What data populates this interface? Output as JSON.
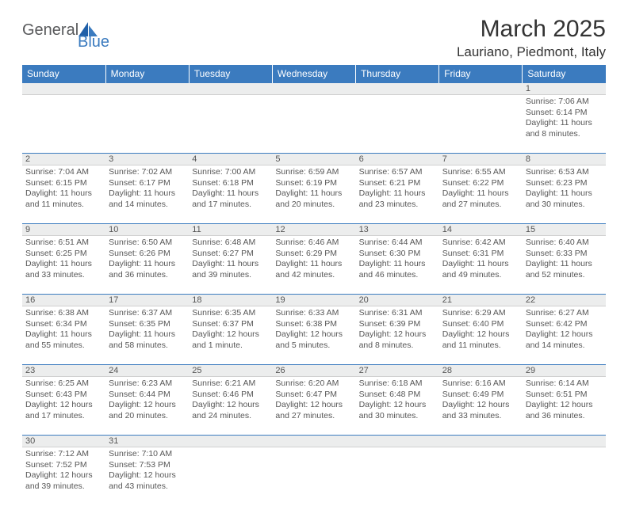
{
  "logo": {
    "text1": "General",
    "text2": "Blue"
  },
  "header": {
    "month_title": "March 2025",
    "location": "Lauriano, Piedmont, Italy"
  },
  "colors": {
    "header_bg": "#3b7bbf",
    "header_text": "#ffffff",
    "daynum_bg": "#eceded",
    "divider": "#3b7bbf",
    "body_text": "#575757"
  },
  "day_names": [
    "Sunday",
    "Monday",
    "Tuesday",
    "Wednesday",
    "Thursday",
    "Friday",
    "Saturday"
  ],
  "weeks": [
    [
      null,
      null,
      null,
      null,
      null,
      null,
      {
        "n": "1",
        "sr": "Sunrise: 7:06 AM",
        "ss": "Sunset: 6:14 PM",
        "dl": "Daylight: 11 hours and 8 minutes."
      }
    ],
    [
      {
        "n": "2",
        "sr": "Sunrise: 7:04 AM",
        "ss": "Sunset: 6:15 PM",
        "dl": "Daylight: 11 hours and 11 minutes."
      },
      {
        "n": "3",
        "sr": "Sunrise: 7:02 AM",
        "ss": "Sunset: 6:17 PM",
        "dl": "Daylight: 11 hours and 14 minutes."
      },
      {
        "n": "4",
        "sr": "Sunrise: 7:00 AM",
        "ss": "Sunset: 6:18 PM",
        "dl": "Daylight: 11 hours and 17 minutes."
      },
      {
        "n": "5",
        "sr": "Sunrise: 6:59 AM",
        "ss": "Sunset: 6:19 PM",
        "dl": "Daylight: 11 hours and 20 minutes."
      },
      {
        "n": "6",
        "sr": "Sunrise: 6:57 AM",
        "ss": "Sunset: 6:21 PM",
        "dl": "Daylight: 11 hours and 23 minutes."
      },
      {
        "n": "7",
        "sr": "Sunrise: 6:55 AM",
        "ss": "Sunset: 6:22 PM",
        "dl": "Daylight: 11 hours and 27 minutes."
      },
      {
        "n": "8",
        "sr": "Sunrise: 6:53 AM",
        "ss": "Sunset: 6:23 PM",
        "dl": "Daylight: 11 hours and 30 minutes."
      }
    ],
    [
      {
        "n": "9",
        "sr": "Sunrise: 6:51 AM",
        "ss": "Sunset: 6:25 PM",
        "dl": "Daylight: 11 hours and 33 minutes."
      },
      {
        "n": "10",
        "sr": "Sunrise: 6:50 AM",
        "ss": "Sunset: 6:26 PM",
        "dl": "Daylight: 11 hours and 36 minutes."
      },
      {
        "n": "11",
        "sr": "Sunrise: 6:48 AM",
        "ss": "Sunset: 6:27 PM",
        "dl": "Daylight: 11 hours and 39 minutes."
      },
      {
        "n": "12",
        "sr": "Sunrise: 6:46 AM",
        "ss": "Sunset: 6:29 PM",
        "dl": "Daylight: 11 hours and 42 minutes."
      },
      {
        "n": "13",
        "sr": "Sunrise: 6:44 AM",
        "ss": "Sunset: 6:30 PM",
        "dl": "Daylight: 11 hours and 46 minutes."
      },
      {
        "n": "14",
        "sr": "Sunrise: 6:42 AM",
        "ss": "Sunset: 6:31 PM",
        "dl": "Daylight: 11 hours and 49 minutes."
      },
      {
        "n": "15",
        "sr": "Sunrise: 6:40 AM",
        "ss": "Sunset: 6:33 PM",
        "dl": "Daylight: 11 hours and 52 minutes."
      }
    ],
    [
      {
        "n": "16",
        "sr": "Sunrise: 6:38 AM",
        "ss": "Sunset: 6:34 PM",
        "dl": "Daylight: 11 hours and 55 minutes."
      },
      {
        "n": "17",
        "sr": "Sunrise: 6:37 AM",
        "ss": "Sunset: 6:35 PM",
        "dl": "Daylight: 11 hours and 58 minutes."
      },
      {
        "n": "18",
        "sr": "Sunrise: 6:35 AM",
        "ss": "Sunset: 6:37 PM",
        "dl": "Daylight: 12 hours and 1 minute."
      },
      {
        "n": "19",
        "sr": "Sunrise: 6:33 AM",
        "ss": "Sunset: 6:38 PM",
        "dl": "Daylight: 12 hours and 5 minutes."
      },
      {
        "n": "20",
        "sr": "Sunrise: 6:31 AM",
        "ss": "Sunset: 6:39 PM",
        "dl": "Daylight: 12 hours and 8 minutes."
      },
      {
        "n": "21",
        "sr": "Sunrise: 6:29 AM",
        "ss": "Sunset: 6:40 PM",
        "dl": "Daylight: 12 hours and 11 minutes."
      },
      {
        "n": "22",
        "sr": "Sunrise: 6:27 AM",
        "ss": "Sunset: 6:42 PM",
        "dl": "Daylight: 12 hours and 14 minutes."
      }
    ],
    [
      {
        "n": "23",
        "sr": "Sunrise: 6:25 AM",
        "ss": "Sunset: 6:43 PM",
        "dl": "Daylight: 12 hours and 17 minutes."
      },
      {
        "n": "24",
        "sr": "Sunrise: 6:23 AM",
        "ss": "Sunset: 6:44 PM",
        "dl": "Daylight: 12 hours and 20 minutes."
      },
      {
        "n": "25",
        "sr": "Sunrise: 6:21 AM",
        "ss": "Sunset: 6:46 PM",
        "dl": "Daylight: 12 hours and 24 minutes."
      },
      {
        "n": "26",
        "sr": "Sunrise: 6:20 AM",
        "ss": "Sunset: 6:47 PM",
        "dl": "Daylight: 12 hours and 27 minutes."
      },
      {
        "n": "27",
        "sr": "Sunrise: 6:18 AM",
        "ss": "Sunset: 6:48 PM",
        "dl": "Daylight: 12 hours and 30 minutes."
      },
      {
        "n": "28",
        "sr": "Sunrise: 6:16 AM",
        "ss": "Sunset: 6:49 PM",
        "dl": "Daylight: 12 hours and 33 minutes."
      },
      {
        "n": "29",
        "sr": "Sunrise: 6:14 AM",
        "ss": "Sunset: 6:51 PM",
        "dl": "Daylight: 12 hours and 36 minutes."
      }
    ],
    [
      {
        "n": "30",
        "sr": "Sunrise: 7:12 AM",
        "ss": "Sunset: 7:52 PM",
        "dl": "Daylight: 12 hours and 39 minutes."
      },
      {
        "n": "31",
        "sr": "Sunrise: 7:10 AM",
        "ss": "Sunset: 7:53 PM",
        "dl": "Daylight: 12 hours and 43 minutes."
      },
      null,
      null,
      null,
      null,
      null
    ]
  ]
}
